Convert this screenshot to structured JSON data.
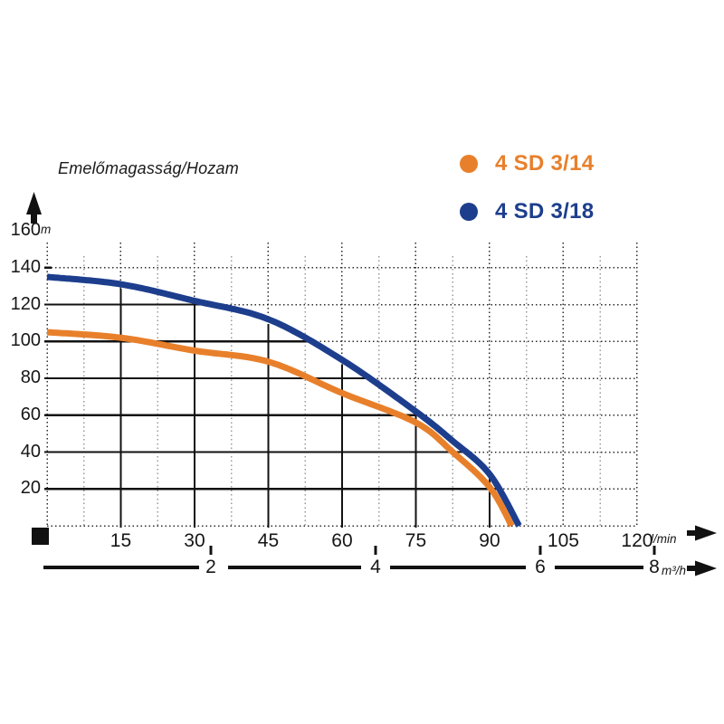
{
  "title": "Emelőmagasság/Hozam",
  "legend": [
    {
      "label": "4 SD 3/14",
      "color": "#e8802b"
    },
    {
      "label": "4 SD 3/18",
      "color": "#1d3e8d"
    }
  ],
  "y_axis": {
    "unit": "m",
    "ticks": [
      160,
      140,
      120,
      100,
      80,
      60,
      40,
      20
    ]
  },
  "x_axis_lmin": {
    "unit": "l/min",
    "ticks": [
      15,
      30,
      45,
      60,
      75,
      90,
      105,
      120
    ]
  },
  "x_axis_m3h": {
    "unit": "m³/h",
    "ticks": [
      2,
      4,
      6,
      8
    ]
  },
  "chart_data": {
    "type": "line",
    "title": "Emelőmagasság/Hozam",
    "xlabel_primary": "l/min",
    "xlabel_secondary": "m³/h",
    "ylabel": "m",
    "xlim": [
      0,
      120
    ],
    "ylim": [
      0,
      160
    ],
    "grid": "dotted full-area; solid black grid clipped under upper curve",
    "x_ticks_lmin": [
      15,
      30,
      45,
      60,
      75,
      90,
      105,
      120
    ],
    "x_ticks_m3h": [
      2,
      4,
      6,
      8
    ],
    "y_ticks": [
      20,
      40,
      60,
      80,
      100,
      120,
      140,
      160
    ],
    "legend_position": "top-right",
    "series": [
      {
        "name": "4 SD 3/18",
        "color": "#1d3e8d",
        "points": [
          [
            0,
            135
          ],
          [
            15,
            131
          ],
          [
            30,
            122
          ],
          [
            45,
            112
          ],
          [
            60,
            90
          ],
          [
            75,
            62
          ],
          [
            82.5,
            46
          ],
          [
            90,
            28
          ],
          [
            96,
            0
          ]
        ]
      },
      {
        "name": "4 SD 3/14",
        "color": "#e8802b",
        "points": [
          [
            0,
            105
          ],
          [
            15,
            102
          ],
          [
            30,
            95
          ],
          [
            45,
            89
          ],
          [
            60,
            72
          ],
          [
            75,
            56
          ],
          [
            82.5,
            40
          ],
          [
            90,
            21
          ],
          [
            94.5,
            0
          ]
        ]
      }
    ]
  }
}
